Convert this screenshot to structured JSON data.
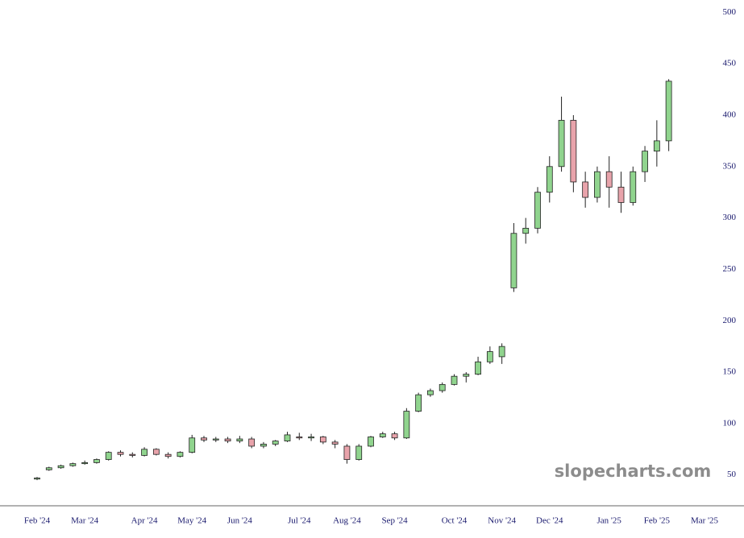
{
  "chart_data": {
    "type": "candlestick",
    "watermark": "slopecharts.com",
    "categories": [
      "Feb '24",
      null,
      null,
      null,
      "Mar '24",
      null,
      null,
      null,
      null,
      "Apr '24",
      null,
      null,
      null,
      "May '24",
      null,
      null,
      null,
      "Jun '24",
      null,
      null,
      null,
      null,
      "Jul '24",
      null,
      null,
      null,
      "Aug '24",
      null,
      null,
      null,
      "Sep '24",
      null,
      null,
      null,
      null,
      "Oct '24",
      null,
      null,
      null,
      "Nov '24",
      null,
      null,
      null,
      "Dec '24",
      null,
      null,
      null,
      null,
      "Jan '25",
      null,
      null,
      null,
      "Feb '25",
      null,
      null,
      null,
      "Mar '25"
    ],
    "open": [
      46,
      55,
      57,
      59,
      61,
      62,
      65,
      72,
      70,
      69,
      75,
      70,
      68,
      72,
      86,
      84,
      85,
      83,
      85,
      78,
      80,
      83,
      87,
      86,
      87,
      82,
      78,
      65,
      78,
      87,
      90,
      86,
      112,
      128,
      132,
      138,
      146,
      148,
      160,
      165,
      232,
      285,
      290,
      325,
      350,
      395,
      335,
      320,
      345,
      330,
      315,
      345,
      365,
      375,
      null,
      null,
      null
    ],
    "high": [
      48,
      58,
      60,
      62,
      64,
      66,
      73,
      74,
      72,
      77,
      76,
      72,
      73,
      89,
      88,
      87,
      87,
      88,
      87,
      82,
      84,
      92,
      91,
      90,
      88,
      84,
      80,
      80,
      88,
      92,
      92,
      115,
      130,
      134,
      140,
      148,
      150,
      165,
      175,
      178,
      295,
      300,
      330,
      360,
      418,
      400,
      345,
      350,
      360,
      345,
      350,
      370,
      395,
      435,
      null,
      null,
      null
    ],
    "low": [
      45,
      54,
      56,
      58,
      60,
      61,
      64,
      68,
      67,
      68,
      69,
      66,
      67,
      71,
      82,
      82,
      81,
      81,
      76,
      76,
      78,
      82,
      84,
      83,
      80,
      76,
      61,
      64,
      77,
      86,
      84,
      85,
      111,
      126,
      130,
      137,
      140,
      147,
      158,
      158,
      228,
      275,
      285,
      315,
      345,
      325,
      310,
      315,
      310,
      305,
      312,
      335,
      350,
      365,
      null,
      null,
      null
    ],
    "close": [
      47,
      57,
      59,
      61,
      62,
      65,
      72,
      70,
      69,
      75,
      70,
      68,
      72,
      86,
      84,
      85,
      83,
      85,
      78,
      80,
      83,
      89,
      86,
      87,
      82,
      80,
      65,
      78,
      87,
      90,
      86,
      112,
      128,
      132,
      138,
      146,
      148,
      160,
      170,
      175,
      285,
      290,
      325,
      350,
      395,
      335,
      320,
      345,
      330,
      315,
      345,
      365,
      375,
      433,
      null,
      null,
      null
    ],
    "up_color": "#90d48e",
    "down_color": "#e8a3ab",
    "ylim": [
      20,
      512
    ],
    "yticks": [
      50,
      100,
      150,
      200,
      250,
      300,
      350,
      400,
      450,
      500
    ]
  }
}
